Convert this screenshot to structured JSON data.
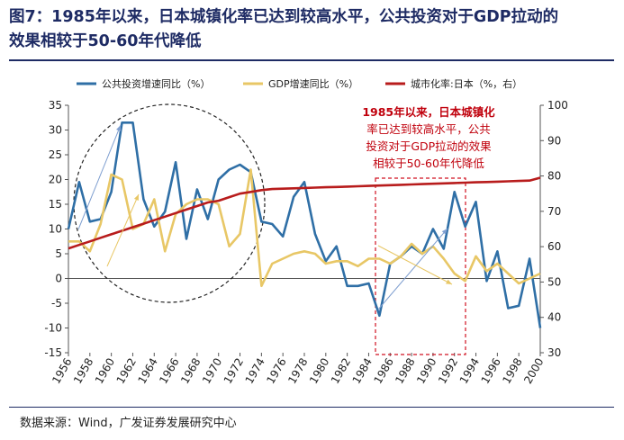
{
  "header": {
    "title_line1": "图7：1985年以来，日本城镇化率已达到较高水平，公共投资对于GDP拉动的",
    "title_line2": "效果相较于50-60年代降低"
  },
  "source": "数据来源：Wind，广发证券发展研究中心",
  "colors": {
    "title": "#1e2b64",
    "investment": "#2f6fa6",
    "gdp": "#e8c766",
    "urban": "#b81c1c",
    "annotation": "#c0000c"
  },
  "chart_data": {
    "type": "line",
    "legend_position": "top",
    "x": [
      1956,
      1957,
      1958,
      1959,
      1960,
      1961,
      1962,
      1963,
      1964,
      1965,
      1966,
      1967,
      1968,
      1969,
      1970,
      1971,
      1972,
      1973,
      1974,
      1975,
      1976,
      1977,
      1978,
      1979,
      1980,
      1981,
      1982,
      1983,
      1984,
      1985,
      1986,
      1987,
      1988,
      1989,
      1990,
      1991,
      1992,
      1993,
      1994,
      1995,
      1996,
      1997,
      1998,
      1999,
      2000
    ],
    "x_tick_labels": [
      "1956",
      "1958",
      "1960",
      "1962",
      "1964",
      "1966",
      "1968",
      "1970",
      "1972",
      "1974",
      "1976",
      "1978",
      "1980",
      "1982",
      "1984",
      "1986",
      "1988",
      "1990",
      "1992",
      "1994",
      "1996",
      "1998",
      "2000"
    ],
    "left_axis": {
      "ylim": [
        -15,
        35
      ],
      "ticks": [
        "35",
        "30",
        "25",
        "20",
        "15",
        "10",
        "5",
        "0",
        "-5",
        "-10",
        "-15"
      ]
    },
    "right_axis": {
      "ylim": [
        30,
        100
      ],
      "ticks": [
        "100",
        "90",
        "80",
        "70",
        "60",
        "50",
        "40",
        "30"
      ]
    },
    "series": [
      {
        "name": "公共投资增速同比（%）",
        "axis": "left",
        "color": "#2f6fa6",
        "values": [
          10,
          19.5,
          11.5,
          12,
          17.5,
          31.5,
          31.5,
          16,
          10.5,
          13.5,
          23.5,
          8,
          18,
          12,
          20,
          22,
          23,
          21.5,
          11.5,
          11,
          8.5,
          16.5,
          19.5,
          9,
          3.5,
          6.5,
          -1.5,
          -1.5,
          -1,
          -7.5,
          3,
          4.5,
          6.5,
          5,
          10,
          6,
          17.5,
          10.5,
          15.5,
          -0.5,
          5.5,
          -6,
          -5.5,
          4,
          -10
        ]
      },
      {
        "name": "GDP增速同比（%）",
        "axis": "left",
        "color": "#e8c766",
        "values": [
          7.5,
          7.5,
          5.5,
          11,
          21,
          20,
          10,
          11,
          16,
          5.5,
          13,
          15,
          16,
          16,
          15,
          6.5,
          9,
          22,
          -1.5,
          3,
          4,
          5,
          5.5,
          5,
          3,
          3.5,
          3.5,
          2.5,
          4,
          4,
          3,
          4.5,
          7,
          5,
          6.5,
          4,
          1,
          -0.5,
          4.5,
          1.5,
          3,
          1,
          -1,
          0,
          1
        ]
      },
      {
        "name": "城市化率:日本（%，右）",
        "axis": "right",
        "color": "#b81c1c",
        "values": [
          59.5,
          60.5,
          61.5,
          62.5,
          63.5,
          64.5,
          65.5,
          66.5,
          67.5,
          68.5,
          69.5,
          70.5,
          71.5,
          72.5,
          73,
          74,
          75,
          75.5,
          76,
          76.3,
          76.4,
          76.5,
          76.6,
          76.7,
          76.8,
          76.9,
          77,
          77.1,
          77.2,
          77.3,
          77.4,
          77.5,
          77.6,
          77.7,
          77.8,
          77.9,
          78,
          78.1,
          78.2,
          78.3,
          78.4,
          78.5,
          78.6,
          78.7,
          79.5
        ]
      }
    ],
    "annotation": {
      "lines": [
        "1985年以来，日本城镇化",
        "率已达到较高水平，公共",
        "投资对于GDP拉动的效果",
        "相较于50-60年代降低"
      ]
    }
  }
}
